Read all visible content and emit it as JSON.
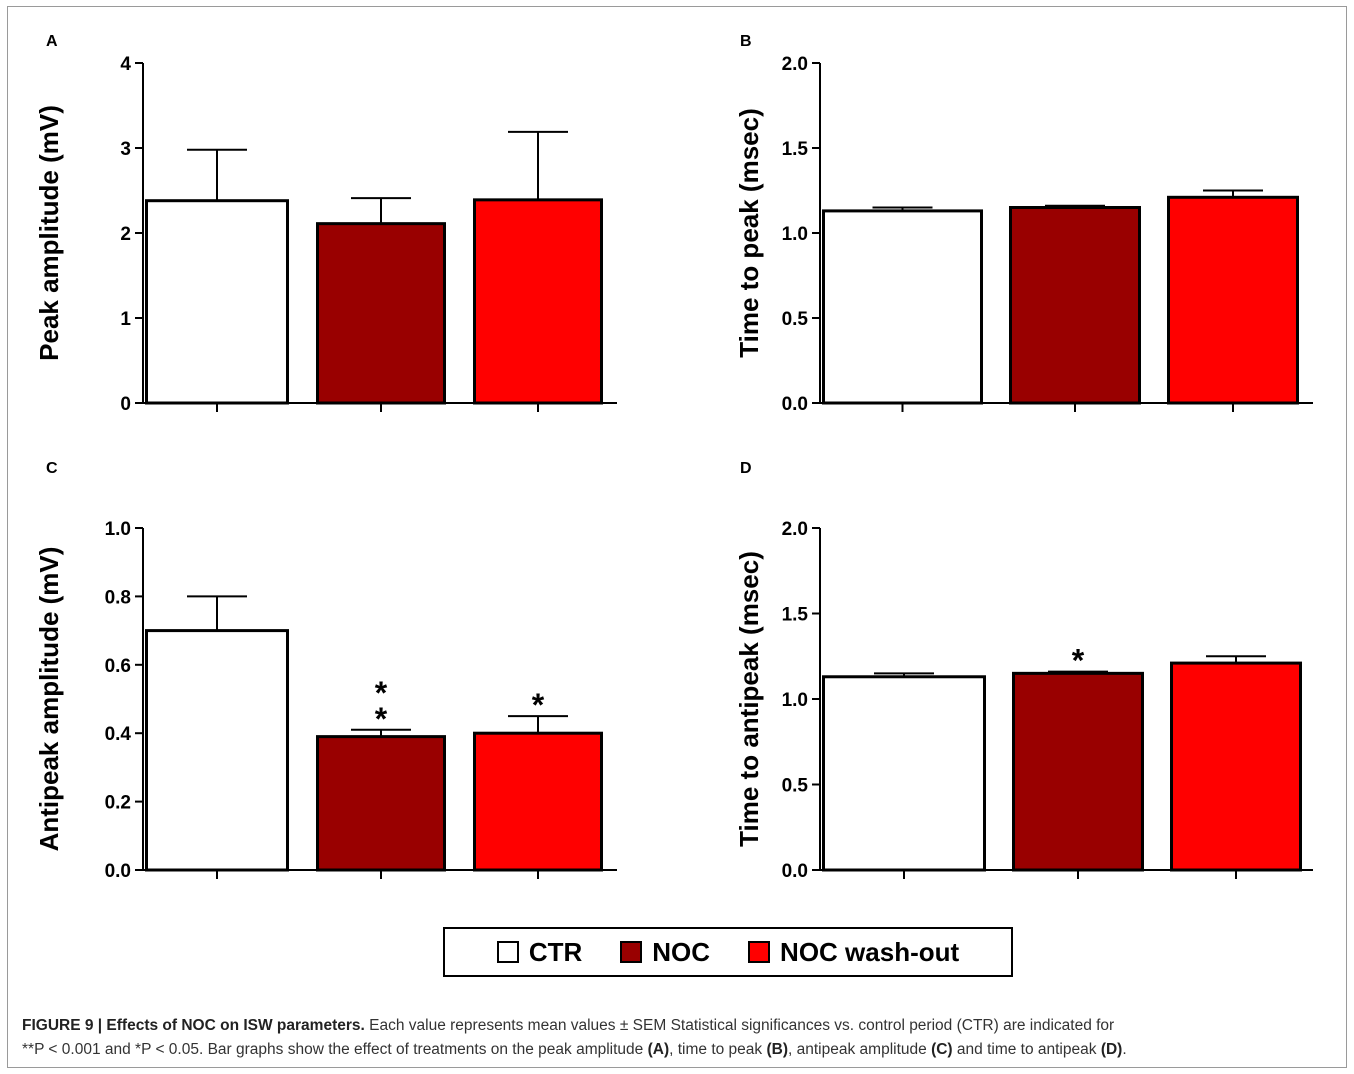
{
  "caption": {
    "label": "FIGURE 9 | Effects of NOC on ISW parameters.",
    "text_1": " Each value represents mean values ± SEM Statistical significances vs. control period (CTR) are indicated for ",
    "text_2": "**P < 0.001 and *P < 0.05. Bar graphs show the effect of treatments on the peak amplitude ",
    "ref_a": "(A)",
    "text_3": ", time to peak ",
    "ref_b": "(B)",
    "text_4": ", antipeak amplitude ",
    "ref_c": "(C)",
    "text_5": " and time to antipeak ",
    "ref_d": "(D)",
    "text_6": "."
  },
  "legend": {
    "items": [
      {
        "label": "CTR",
        "color": "#ffffff"
      },
      {
        "label": "NOC",
        "color": "#990000"
      },
      {
        "label": "NOC wash-out",
        "color": "#ff0000"
      }
    ]
  },
  "chart_data": [
    {
      "panel": "A",
      "type": "bar",
      "categories": [
        "CTR",
        "NOC",
        "NOC wash-out"
      ],
      "colors": [
        "#ffffff",
        "#990000",
        "#ff0000"
      ],
      "values": [
        2.38,
        2.11,
        2.39
      ],
      "errors": [
        0.6,
        0.3,
        0.8
      ],
      "significance": [
        "",
        "",
        ""
      ],
      "ylabel": "Peak amplitude (mV)",
      "ylim": [
        0,
        4
      ],
      "yticks": [
        0,
        1,
        2,
        3,
        4
      ],
      "ytick_labels": [
        "0",
        "1",
        "2",
        "3",
        "4"
      ]
    },
    {
      "panel": "B",
      "type": "bar",
      "categories": [
        "CTR",
        "NOC",
        "NOC wash-out"
      ],
      "colors": [
        "#ffffff",
        "#990000",
        "#ff0000"
      ],
      "values": [
        1.13,
        1.15,
        1.21
      ],
      "errors": [
        0.02,
        0.01,
        0.04
      ],
      "significance": [
        "",
        "",
        ""
      ],
      "ylabel": "Time to peak (msec)",
      "ylim": [
        0,
        2
      ],
      "yticks": [
        0,
        0.5,
        1,
        1.5,
        2
      ],
      "ytick_labels": [
        "0.0",
        "0.5",
        "1.0",
        "1.5",
        "2.0"
      ]
    },
    {
      "panel": "C",
      "type": "bar",
      "categories": [
        "CTR",
        "NOC",
        "NOC wash-out"
      ],
      "colors": [
        "#ffffff",
        "#990000",
        "#ff0000"
      ],
      "values": [
        0.7,
        0.39,
        0.4
      ],
      "errors": [
        0.1,
        0.02,
        0.05
      ],
      "significance": [
        "",
        "**",
        "*"
      ],
      "ylabel": "Antipeak amplitude (mV)",
      "ylim": [
        0,
        1
      ],
      "yticks": [
        0,
        0.2,
        0.4,
        0.6,
        0.8,
        1.0
      ],
      "ytick_labels": [
        "0.0",
        "0.2",
        "0.4",
        "0.6",
        "0.8",
        "1.0"
      ]
    },
    {
      "panel": "D",
      "type": "bar",
      "categories": [
        "CTR",
        "NOC",
        "NOC wash-out"
      ],
      "colors": [
        "#ffffff",
        "#990000",
        "#ff0000"
      ],
      "values": [
        1.13,
        1.15,
        1.21
      ],
      "errors": [
        0.02,
        0.01,
        0.04
      ],
      "significance": [
        "",
        "*",
        ""
      ],
      "ylabel": "Time to antipeak (msec)",
      "ylim": [
        0,
        2
      ],
      "yticks": [
        0,
        0.5,
        1,
        1.5,
        2
      ],
      "ytick_labels": [
        "0.0",
        "0.5",
        "1.0",
        "1.5",
        "2.0"
      ]
    }
  ]
}
